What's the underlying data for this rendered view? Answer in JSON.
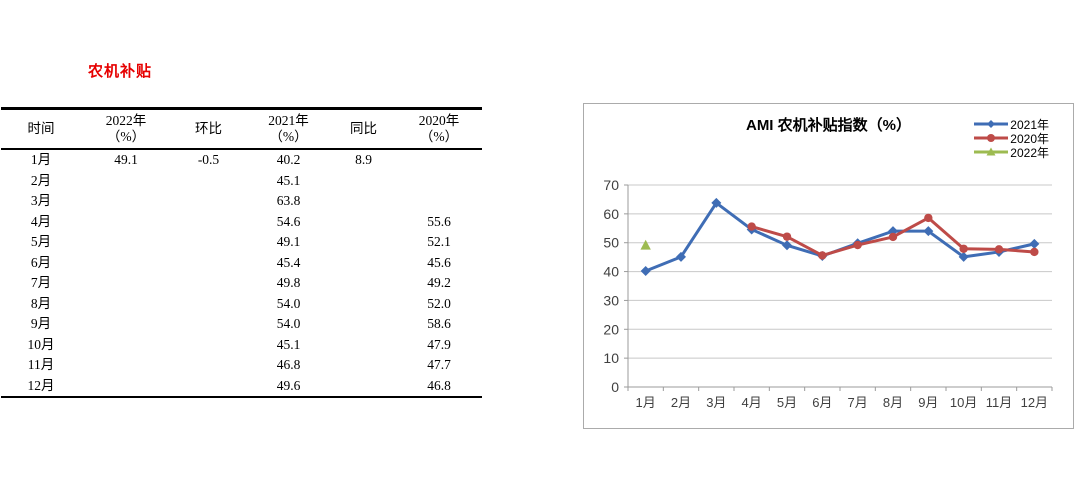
{
  "table_section": {
    "title": "农机补贴",
    "title_color": "#e60000",
    "columns": [
      {
        "key": "time",
        "label": "时间",
        "sub": ""
      },
      {
        "key": "y2022",
        "label": "2022年",
        "sub": "（%）"
      },
      {
        "key": "mom",
        "label": "环比",
        "sub": ""
      },
      {
        "key": "y2021",
        "label": "2021年",
        "sub": "（%）"
      },
      {
        "key": "yoy",
        "label": "同比",
        "sub": ""
      },
      {
        "key": "y2020",
        "label": "2020年",
        "sub": "（%）"
      }
    ],
    "rows": [
      [
        "1月",
        "49.1",
        "-0.5",
        "40.2",
        "8.9",
        ""
      ],
      [
        "2月",
        "",
        "",
        "45.1",
        "",
        ""
      ],
      [
        "3月",
        "",
        "",
        "63.8",
        "",
        ""
      ],
      [
        "4月",
        "",
        "",
        "54.6",
        "",
        "55.6"
      ],
      [
        "5月",
        "",
        "",
        "49.1",
        "",
        "52.1"
      ],
      [
        "6月",
        "",
        "",
        "45.4",
        "",
        "45.6"
      ],
      [
        "7月",
        "",
        "",
        "49.8",
        "",
        "49.2"
      ],
      [
        "8月",
        "",
        "",
        "54.0",
        "",
        "52.0"
      ],
      [
        "9月",
        "",
        "",
        "54.0",
        "",
        "58.6"
      ],
      [
        "10月",
        "",
        "",
        "45.1",
        "",
        "47.9"
      ],
      [
        "11月",
        "",
        "",
        "46.8",
        "",
        "47.7"
      ],
      [
        "12月",
        "",
        "",
        "49.6",
        "",
        "46.8"
      ]
    ]
  },
  "chart_data": {
    "type": "line",
    "title": "AMI 农机补贴指数（%）",
    "categories": [
      "1月",
      "2月",
      "3月",
      "4月",
      "5月",
      "6月",
      "7月",
      "8月",
      "9月",
      "10月",
      "11月",
      "12月"
    ],
    "series": [
      {
        "name": "2021年",
        "marker": "diamond",
        "color": "#3F6DB5",
        "values": [
          40.2,
          45.1,
          63.8,
          54.6,
          49.1,
          45.4,
          49.8,
          54.0,
          54.0,
          45.1,
          46.8,
          49.6
        ]
      },
      {
        "name": "2020年",
        "marker": "circle",
        "color": "#BE4B48",
        "values": [
          null,
          null,
          null,
          55.6,
          52.1,
          45.6,
          49.2,
          52.0,
          58.6,
          47.9,
          47.7,
          46.8
        ]
      },
      {
        "name": "2022年",
        "marker": "triangle",
        "color": "#9DBB51",
        "values": [
          49.1,
          null,
          null,
          null,
          null,
          null,
          null,
          null,
          null,
          null,
          null,
          null
        ]
      }
    ],
    "ylim": [
      0,
      70
    ],
    "ytick_step": 10,
    "grid": true,
    "legend_position": "top-right",
    "colors": {
      "grid": "#c8c8c8",
      "axis": "#9b9b9b",
      "tick_label": "#404040",
      "border": "#ababab"
    }
  }
}
